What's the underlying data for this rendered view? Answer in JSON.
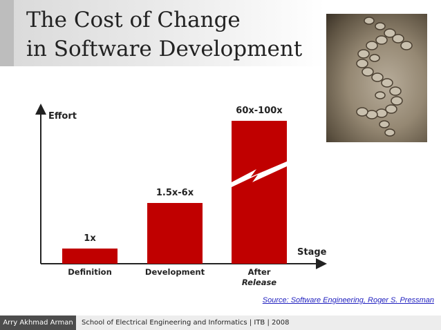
{
  "title": {
    "line1": "The Cost of Change",
    "line2": "in Software Development"
  },
  "photo": {
    "icon": "dollar-coins-photo"
  },
  "chart_data": {
    "type": "bar",
    "categories": [
      "Definition",
      "Development",
      "After Release"
    ],
    "category_lines": [
      [
        "Definition"
      ],
      [
        "Development"
      ],
      [
        "After",
        "Release"
      ]
    ],
    "values": [
      1,
      4,
      80
    ],
    "data_labels": [
      "1x",
      "1.5x-6x",
      "60x-100x"
    ],
    "ylabel": "Effort",
    "xlabel": "Stage",
    "bar_color": "#c00000",
    "axis_break_on_last_bar": true
  },
  "source": "Source: Software Engineering, Roger S. Pressman",
  "footer": {
    "author": "Arry Akhmad Arman",
    "school": "School of Electrical Engineering and Informatics | ITB | 2008"
  }
}
